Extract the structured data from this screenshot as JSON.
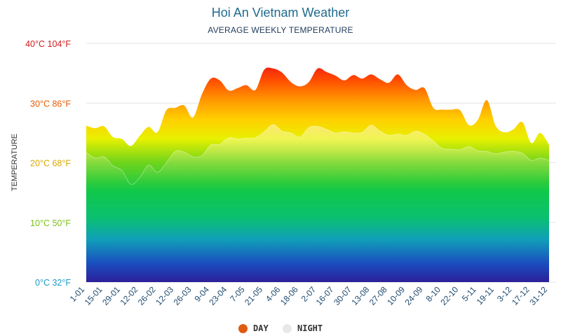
{
  "chart_data": {
    "type": "area",
    "title": "Hoi An Vietnam Weather",
    "subtitle": "AVERAGE WEEKLY TEMPERATURE",
    "ylabel": "TEMPERATURE",
    "ylim": [
      0,
      40
    ],
    "y_ticks": [
      {
        "value": 40,
        "label": "40°C 104°F",
        "color": "#d21a1a"
      },
      {
        "value": 30,
        "label": "30°C 86°F",
        "color": "#e85a00"
      },
      {
        "value": 20,
        "label": "20°C 68°F",
        "color": "#d9a800"
      },
      {
        "value": 10,
        "label": "10°C 50°F",
        "color": "#7cc21a"
      },
      {
        "value": 0,
        "label": "0°C 32°F",
        "color": "#1a9ac9"
      }
    ],
    "x_tick_labels": [
      "1-01",
      "15-01",
      "29-01",
      "12-02",
      "26-02",
      "12-03",
      "26-03",
      "9-04",
      "23-04",
      "7-05",
      "21-05",
      "4-06",
      "18-06",
      "2-07",
      "16-07",
      "30-07",
      "13-08",
      "27-08",
      "10-09",
      "24-09",
      "8-10",
      "22-10",
      "5-11",
      "19-11",
      "3-12",
      "17-12",
      "31-12"
    ],
    "series": [
      {
        "name": "DAY",
        "color": "#e05a10",
        "values": [
          26.2,
          25.8,
          26.1,
          24.3,
          24.0,
          22.8,
          24.5,
          26.0,
          25.1,
          28.8,
          29.2,
          29.6,
          27.6,
          31.5,
          34.1,
          33.8,
          32.1,
          32.5,
          33.0,
          32.2,
          35.6,
          35.8,
          35.1,
          33.5,
          32.8,
          33.5,
          35.8,
          35.2,
          34.6,
          33.8,
          34.7,
          34.1,
          34.8,
          34.0,
          33.4,
          34.8,
          33.0,
          32.2,
          32.5,
          29.2,
          28.9,
          28.9,
          28.8,
          26.3,
          27.2,
          30.5,
          26.2,
          25.1,
          25.6,
          26.8,
          23.3,
          25.0,
          23.0
        ]
      },
      {
        "name": "NIGHT",
        "color": "#e8e8e8",
        "values": [
          21.7,
          20.8,
          21.0,
          19.5,
          18.7,
          16.4,
          17.5,
          19.6,
          18.4,
          20.0,
          21.9,
          21.8,
          21.0,
          21.2,
          23.0,
          23.1,
          24.2,
          24.0,
          24.1,
          24.2,
          25.2,
          26.4,
          25.3,
          25.0,
          24.3,
          25.9,
          26.1,
          25.6,
          25.0,
          25.2,
          25.0,
          25.1,
          26.3,
          25.3,
          24.6,
          24.8,
          24.6,
          25.3,
          24.8,
          23.6,
          22.4,
          22.3,
          22.2,
          22.7,
          22.0,
          21.9,
          21.5,
          21.8,
          21.9,
          21.6,
          20.4,
          20.8,
          20.4
        ]
      }
    ]
  }
}
